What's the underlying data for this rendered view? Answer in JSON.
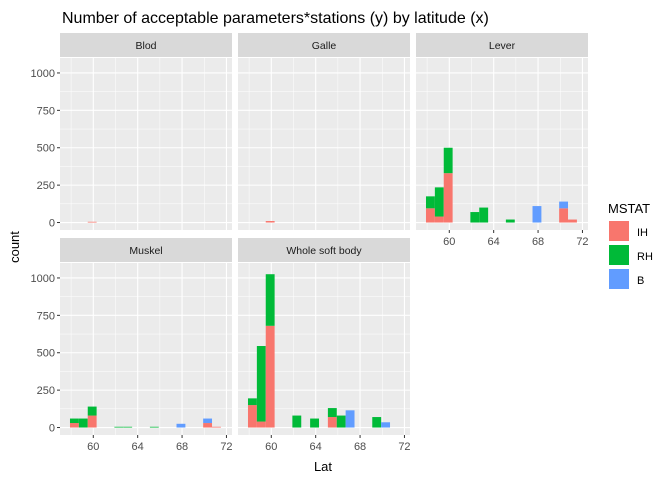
{
  "chart_data": {
    "type": "bar",
    "title": "Number of acceptable parameters*stations (y) by latitude (x)",
    "xlabel": "Lat",
    "ylabel": "count",
    "xlim": [
      57,
      72.5
    ],
    "ylim": [
      -50,
      1100
    ],
    "x_ticks": [
      60,
      64,
      68,
      72
    ],
    "y_ticks": [
      0,
      250,
      500,
      750,
      1000
    ],
    "bin_width": 0.8,
    "stacked": true,
    "stack_order": [
      "IH",
      "RH",
      "B"
    ],
    "grid": true,
    "legend": {
      "title": "MSTAT",
      "position": "right",
      "entries": [
        {
          "name": "IH",
          "color": "#F8766D"
        },
        {
          "name": "RH",
          "color": "#00BA38"
        },
        {
          "name": "B",
          "color": "#619CFF"
        }
      ]
    },
    "facets": [
      {
        "name": "Blod",
        "bins": [
          {
            "x": 59.9,
            "IH": 5,
            "RH": 0,
            "B": 0
          }
        ]
      },
      {
        "name": "Galle",
        "bins": [
          {
            "x": 59.9,
            "IH": 10,
            "RH": 0,
            "B": 0
          }
        ]
      },
      {
        "name": "Lever",
        "bins": [
          {
            "x": 58.3,
            "IH": 95,
            "RH": 80,
            "B": 0
          },
          {
            "x": 59.1,
            "IH": 40,
            "RH": 195,
            "B": 0
          },
          {
            "x": 59.9,
            "IH": 330,
            "RH": 170,
            "B": 0
          },
          {
            "x": 62.3,
            "IH": 0,
            "RH": 70,
            "B": 0
          },
          {
            "x": 63.1,
            "IH": 0,
            "RH": 100,
            "B": 0
          },
          {
            "x": 65.5,
            "IH": 0,
            "RH": 20,
            "B": 0
          },
          {
            "x": 67.9,
            "IH": 0,
            "RH": 0,
            "B": 110
          },
          {
            "x": 70.3,
            "IH": 95,
            "RH": 0,
            "B": 45
          },
          {
            "x": 71.1,
            "IH": 20,
            "RH": 0,
            "B": 0
          }
        ]
      },
      {
        "name": "Muskel",
        "bins": [
          {
            "x": 58.3,
            "IH": 30,
            "RH": 30,
            "B": 0
          },
          {
            "x": 59.1,
            "IH": 0,
            "RH": 60,
            "B": 0
          },
          {
            "x": 59.9,
            "IH": 80,
            "RH": 60,
            "B": 0
          },
          {
            "x": 62.3,
            "IH": 0,
            "RH": 5,
            "B": 0
          },
          {
            "x": 63.1,
            "IH": 0,
            "RH": 5,
            "B": 0
          },
          {
            "x": 65.5,
            "IH": 0,
            "RH": 5,
            "B": 0
          },
          {
            "x": 67.9,
            "IH": 0,
            "RH": 0,
            "B": 25
          },
          {
            "x": 70.3,
            "IH": 30,
            "RH": 0,
            "B": 30
          },
          {
            "x": 71.1,
            "IH": 5,
            "RH": 0,
            "B": 0
          }
        ]
      },
      {
        "name": "Whole soft body",
        "bins": [
          {
            "x": 58.3,
            "IH": 150,
            "RH": 45,
            "B": 0
          },
          {
            "x": 59.1,
            "IH": 40,
            "RH": 505,
            "B": 0
          },
          {
            "x": 59.9,
            "IH": 680,
            "RH": 345,
            "B": 0
          },
          {
            "x": 62.3,
            "IH": 0,
            "RH": 80,
            "B": 0
          },
          {
            "x": 63.9,
            "IH": 0,
            "RH": 60,
            "B": 0
          },
          {
            "x": 65.5,
            "IH": 70,
            "RH": 60,
            "B": 0
          },
          {
            "x": 66.3,
            "IH": 0,
            "RH": 80,
            "B": 0
          },
          {
            "x": 67.1,
            "IH": 0,
            "RH": 0,
            "B": 115
          },
          {
            "x": 69.5,
            "IH": 0,
            "RH": 70,
            "B": 0
          },
          {
            "x": 70.3,
            "IH": 0,
            "RH": 0,
            "B": 35
          }
        ]
      }
    ]
  }
}
